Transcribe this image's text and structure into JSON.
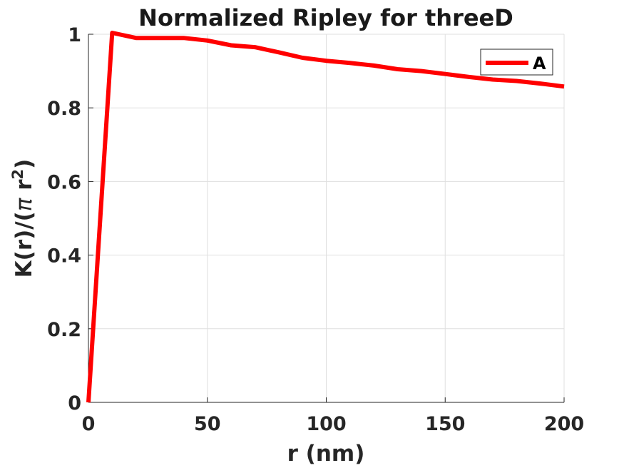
{
  "chart_data": {
    "type": "line",
    "title": "Normalized Ripley for threeD",
    "xlabel": "r (nm)",
    "ylabel_parts": [
      "K(r)/(",
      "π",
      " r",
      "2",
      ")"
    ],
    "xlim": [
      0,
      200
    ],
    "ylim": [
      0,
      1
    ],
    "xticks": [
      0,
      50,
      100,
      150,
      200
    ],
    "yticks": [
      0,
      0.2,
      0.4,
      0.6,
      0.8,
      1
    ],
    "xtick_labels": [
      "0",
      "50",
      "100",
      "150",
      "200"
    ],
    "ytick_labels": [
      "0",
      "0.2",
      "0.4",
      "0.6",
      "0.8",
      "1"
    ],
    "grid": true,
    "legend_position": "top-right",
    "series": [
      {
        "name": "A",
        "color": "#ff0000",
        "x": [
          0,
          10,
          20,
          30,
          40,
          50,
          60,
          70,
          80,
          90,
          100,
          110,
          120,
          130,
          140,
          150,
          160,
          170,
          180,
          190,
          200
        ],
        "y": [
          0,
          1.01,
          0.99,
          0.99,
          0.99,
          0.983,
          0.97,
          0.965,
          0.951,
          0.936,
          0.928,
          0.922,
          0.915,
          0.905,
          0.9,
          0.892,
          0.884,
          0.877,
          0.873,
          0.866,
          0.858
        ]
      }
    ]
  }
}
